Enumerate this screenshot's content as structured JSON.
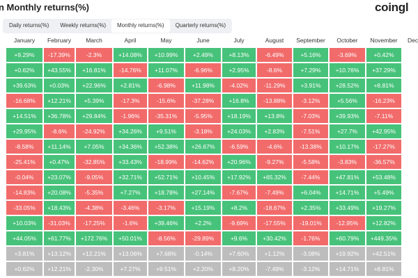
{
  "header": {
    "title": "n Monthly returns(%)",
    "logo": "coingl"
  },
  "tabs": [
    "Daily returns(%)",
    "Weekly returns(%)",
    "Monthly returns(%)",
    "Quarterly returns(%)"
  ],
  "table": {
    "columns": [
      "January",
      "February",
      "March",
      "April",
      "May",
      "June",
      "July",
      "August",
      "September",
      "October",
      "November",
      "Dece"
    ],
    "rows": [
      [
        "+9.29%",
        "-17.39%",
        "-2.3%",
        "+14.08%",
        "+10.99%",
        "+2.49%",
        "+8.13%",
        "-6.49%",
        "+5.16%",
        "-3.69%",
        "+0.42%"
      ],
      [
        "+0.62%",
        "+43.55%",
        "+16.81%",
        "-14.76%",
        "+11.07%",
        "-6.96%",
        "+2.95%",
        "-8.6%",
        "+7.29%",
        "+10.76%",
        "+37.29%"
      ],
      [
        "+39.63%",
        "+0.03%",
        "+22.96%",
        "+2.81%",
        "-6.98%",
        "+11.98%",
        "-4.02%",
        "-11.29%",
        "+3.91%",
        "+28.52%",
        "+8.81%"
      ],
      [
        "-16.68%",
        "+12.21%",
        "+5.39%",
        "-17.3%",
        "-15.6%",
        "-37.28%",
        "+16.8%",
        "-13.88%",
        "-3.12%",
        "+5.56%",
        "-16.23%"
      ],
      [
        "+14.51%",
        "+36.78%",
        "+29.84%",
        "-1.96%",
        "-35.31%",
        "-5.95%",
        "+18.19%",
        "+13.8%",
        "-7.03%",
        "+39.93%",
        "-7.11%"
      ],
      [
        "+29.95%",
        "-8.6%",
        "-24.92%",
        "+34.26%",
        "+9.51%",
        "-3.18%",
        "+24.03%",
        "+2.83%",
        "-7.51%",
        "+27.7%",
        "+42.95%"
      ],
      [
        "-8.58%",
        "+11.14%",
        "+7.05%",
        "+34.36%",
        "+52.38%",
        "+26.67%",
        "-6.59%",
        "-4.6%",
        "-13.38%",
        "+10.17%",
        "-17.27%"
      ],
      [
        "-25.41%",
        "+0.47%",
        "-32.85%",
        "+33.43%",
        "-18.99%",
        "-14.62%",
        "+20.96%",
        "-9.27%",
        "-5.58%",
        "-3.83%",
        "-36.57%"
      ],
      [
        "-0.04%",
        "+23.07%",
        "-9.05%",
        "+32.71%",
        "+52.71%",
        "+10.45%",
        "+17.92%",
        "+65.32%",
        "-7.44%",
        "+47.81%",
        "+53.48%"
      ],
      [
        "-14.83%",
        "+20.08%",
        "-5.35%",
        "+7.27%",
        "+18.78%",
        "+27.14%",
        "-7.67%",
        "-7.49%",
        "+6.04%",
        "+14.71%",
        "+5.49%"
      ],
      [
        "-33.05%",
        "+18.43%",
        "-4.38%",
        "-3.46%",
        "-3.17%",
        "+15.19%",
        "+8.2%",
        "-18.67%",
        "+2.35%",
        "+33.49%",
        "+19.27%"
      ],
      [
        "+10.03%",
        "-31.03%",
        "-17.25%",
        "-1.6%",
        "+39.46%",
        "+2.2%",
        "-9.69%",
        "-17.55%",
        "-19.01%",
        "-12.95%",
        "+12.82%"
      ],
      [
        "+44.05%",
        "+61.77%",
        "+172.76%",
        "+50.01%",
        "-8.56%",
        "-29.89%",
        "+9.6%",
        "+30.42%",
        "-1.76%",
        "+60.79%",
        "+449.35%"
      ]
    ],
    "summary_rows": [
      [
        "+3.81%",
        "+13.12%",
        "+12.21%",
        "+13.06%",
        "+7.68%",
        "-0.14%",
        "+7.60%",
        "+1.12%",
        "-3.08%",
        "+19.92%",
        "+42.51%"
      ],
      [
        "+0.62%",
        "+12.21%",
        "-2.30%",
        "+7.27%",
        "+9.51%",
        "+2.20%",
        "+8.20%",
        "-7.49%",
        "-3.12%",
        "+14.71%",
        "+8.81%"
      ]
    ]
  }
}
